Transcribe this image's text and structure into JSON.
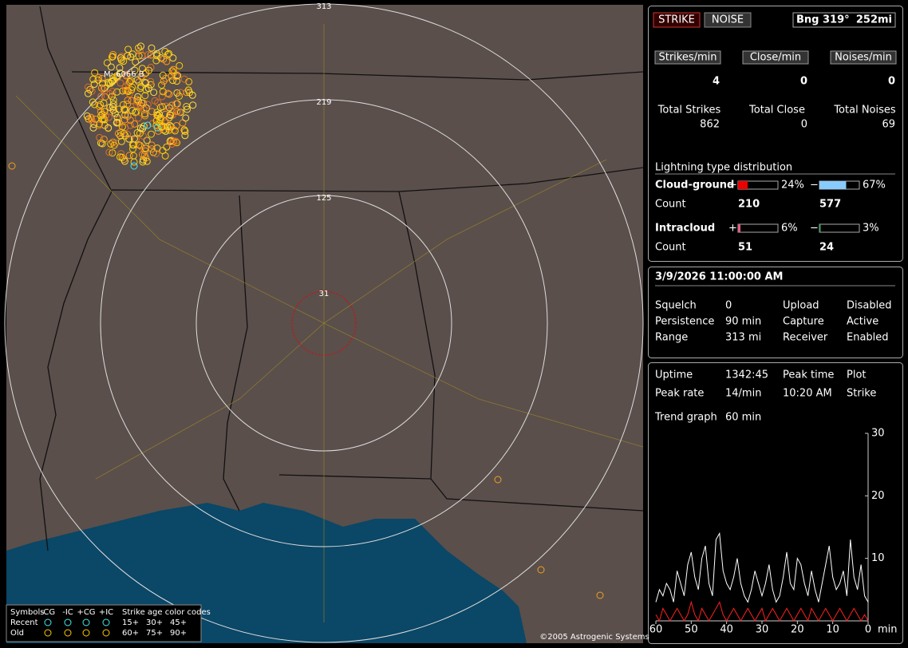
{
  "map": {
    "rings": [
      "313",
      "219",
      "125",
      "31"
    ],
    "cluster_label": "M: 6066 B",
    "legend": {
      "symbols": "Symbols",
      "cols": [
        "-CG",
        "-IC",
        "+CG",
        "+IC"
      ],
      "age_title": "Strike age color codes",
      "rows": [
        {
          "label": "Recent",
          "ages": [
            "15+",
            "30+",
            "45+"
          ]
        },
        {
          "label": "Old",
          "ages": [
            "60+",
            "75+",
            "90+"
          ]
        }
      ]
    },
    "copyright": "©2005 Astrogenic Systems"
  },
  "status": {
    "strike": "STRIKE",
    "noise": "NOISE",
    "bearing": "Bng 319°",
    "distance": "252mi"
  },
  "rates": [
    {
      "label": "Strikes/min",
      "value": "4",
      "total_label": "Total Strikes",
      "total": "862"
    },
    {
      "label": "Close/min",
      "value": "0",
      "total_label": "Total Close",
      "total": "0"
    },
    {
      "label": "Noises/min",
      "value": "0",
      "total_label": "Total Noises",
      "total": "69"
    }
  ],
  "distribution": {
    "title": "Lightning type distribution",
    "count_label": "Count",
    "types": [
      {
        "name": "Cloud-ground",
        "positive": {
          "sign": "+",
          "value": 24,
          "value_label": "24%",
          "count": "210"
        },
        "negative": {
          "sign": "−",
          "value": 67,
          "value_label": "67%",
          "count": "577"
        }
      },
      {
        "name": "Intracloud",
        "positive": {
          "sign": "+",
          "value": 6,
          "value_label": "6%",
          "count": "51"
        },
        "negative": {
          "sign": "−",
          "value": 3,
          "value_label": "3%",
          "count": "24"
        }
      }
    ]
  },
  "clock": "3/9/2026 11:00:00 AM",
  "settings": [
    [
      "Squelch",
      "0",
      "Upload",
      "Disabled"
    ],
    [
      "Persistence",
      "90 min",
      "Capture",
      "Active"
    ],
    [
      "Range",
      "313 mi",
      "Receiver",
      "Enabled"
    ]
  ],
  "stats": [
    [
      "Uptime",
      "1342:45",
      "Peak time",
      "Plot"
    ],
    [
      "Peak rate",
      "14/min",
      "10:20 AM",
      "Strike"
    ]
  ],
  "trend": {
    "label": "Trend graph",
    "period": "60 min",
    "ylim": [
      0,
      30
    ],
    "yticks": [
      10,
      20,
      30
    ],
    "xlim": [
      60,
      0
    ],
    "xticks": [
      60,
      50,
      40,
      30,
      20,
      10,
      0
    ],
    "x_unit": "min",
    "x": [
      60,
      59,
      58,
      57,
      56,
      55,
      54,
      53,
      52,
      51,
      50,
      49,
      48,
      47,
      46,
      45,
      44,
      43,
      42,
      41,
      40,
      39,
      38,
      37,
      36,
      35,
      34,
      33,
      32,
      31,
      30,
      29,
      28,
      27,
      26,
      25,
      24,
      23,
      22,
      21,
      20,
      19,
      18,
      17,
      16,
      15,
      14,
      13,
      12,
      11,
      10,
      9,
      8,
      7,
      6,
      5,
      4,
      3,
      2,
      1,
      0
    ],
    "series": [
      {
        "color": "#ffffff",
        "values": [
          3,
          5,
          4,
          6,
          5,
          3,
          8,
          6,
          4,
          9,
          11,
          7,
          5,
          10,
          12,
          6,
          4,
          13,
          14,
          8,
          6,
          5,
          7,
          10,
          6,
          4,
          3,
          5,
          8,
          6,
          4,
          6,
          9,
          5,
          3,
          4,
          7,
          11,
          6,
          5,
          10,
          9,
          6,
          4,
          8,
          5,
          3,
          6,
          9,
          12,
          7,
          5,
          6,
          8,
          4,
          13,
          7,
          5,
          9,
          4,
          3
        ]
      },
      {
        "color": "#ff2020",
        "values": [
          1,
          0,
          2,
          1,
          0,
          1,
          2,
          1,
          0,
          1,
          3,
          1,
          0,
          2,
          1,
          0,
          1,
          2,
          3,
          1,
          0,
          1,
          2,
          1,
          0,
          1,
          2,
          1,
          0,
          1,
          2,
          0,
          1,
          2,
          1,
          0,
          1,
          2,
          1,
          0,
          1,
          2,
          1,
          0,
          2,
          1,
          0,
          1,
          2,
          1,
          0,
          1,
          2,
          1,
          0,
          1,
          2,
          1,
          0,
          1,
          0
        ]
      }
    ]
  }
}
